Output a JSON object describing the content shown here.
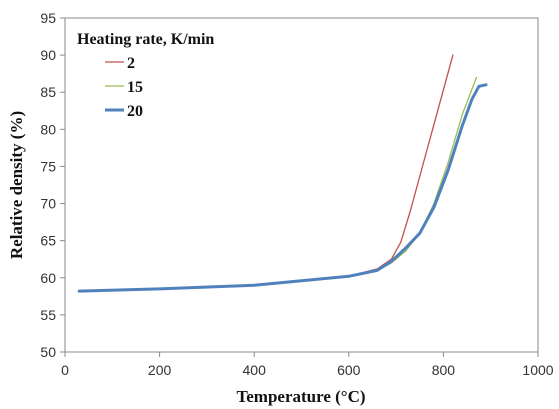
{
  "chart_data": {
    "type": "line",
    "title": "",
    "xlabel": "Temperature (°C)",
    "ylabel": "Relative density (%)",
    "xlim": [
      0,
      1000
    ],
    "ylim": [
      50,
      95
    ],
    "xticks": [
      0,
      200,
      400,
      600,
      800,
      1000
    ],
    "yticks": [
      50,
      55,
      60,
      65,
      70,
      75,
      80,
      85,
      90,
      95
    ],
    "grid": false,
    "legend": {
      "title": "Heating rate, K/min",
      "placement": "top-left"
    },
    "series": [
      {
        "name": "2",
        "color": "#c0504d",
        "x": [
          30,
          200,
          400,
          600,
          660,
          690,
          710,
          730,
          760,
          790,
          820
        ],
        "y": [
          58.2,
          58.5,
          59.0,
          60.2,
          61.2,
          62.5,
          64.8,
          69.0,
          76.0,
          83.0,
          90.0
        ]
      },
      {
        "name": "15",
        "color": "#9bbb59",
        "x": [
          30,
          200,
          400,
          600,
          660,
          690,
          720,
          750,
          780,
          810,
          840,
          870
        ],
        "y": [
          58.2,
          58.5,
          59.0,
          60.1,
          61.0,
          62.0,
          63.6,
          66.0,
          70.0,
          75.5,
          82.0,
          87.0
        ]
      },
      {
        "name": "20",
        "color": "#4f81bd",
        "x": [
          30,
          200,
          400,
          600,
          660,
          690,
          720,
          750,
          780,
          810,
          840,
          860,
          875,
          890
        ],
        "y": [
          58.2,
          58.5,
          59.0,
          60.2,
          61.0,
          62.2,
          64.0,
          66.0,
          69.5,
          74.5,
          80.5,
          84.0,
          85.8,
          86.0
        ]
      }
    ]
  }
}
